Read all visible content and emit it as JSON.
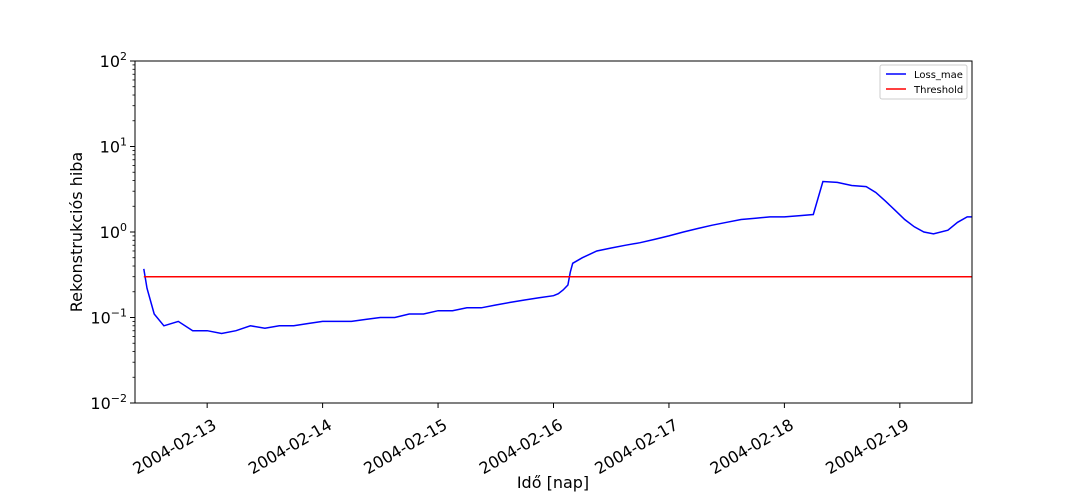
{
  "chart_data": {
    "type": "line",
    "title": "",
    "xlabel": "Idő [nap]",
    "ylabel": "Rekonstrukciós hiba",
    "yscale": "log",
    "ylim": [
      0.01,
      100
    ],
    "xlim": [
      "2004-02-12T09:00",
      "2004-02-19T15:00"
    ],
    "x_ticks": [
      "2004-02-13",
      "2004-02-14",
      "2004-02-15",
      "2004-02-16",
      "2004-02-17",
      "2004-02-18",
      "2004-02-19"
    ],
    "y_ticks": [
      {
        "base": "10",
        "exp": "−2",
        "value": 0.01
      },
      {
        "base": "10",
        "exp": "−1",
        "value": 0.1
      },
      {
        "base": "10",
        "exp": "0",
        "value": 1
      },
      {
        "base": "10",
        "exp": "1",
        "value": 10
      },
      {
        "base": "10",
        "exp": "2",
        "value": 100
      }
    ],
    "grid": false,
    "legend_position": "top-right",
    "series": [
      {
        "name": "Loss_mae",
        "color": "#0000ff",
        "points": [
          [
            "2004-02-12T10:50",
            0.37
          ],
          [
            "2004-02-12T11:30",
            0.22
          ],
          [
            "2004-02-12T13:00",
            0.11
          ],
          [
            "2004-02-12T15:00",
            0.08
          ],
          [
            "2004-02-12T18:00",
            0.09
          ],
          [
            "2004-02-12T21:00",
            0.07
          ],
          [
            "2004-02-13T00:00",
            0.07
          ],
          [
            "2004-02-13T03:00",
            0.065
          ],
          [
            "2004-02-13T06:00",
            0.07
          ],
          [
            "2004-02-13T09:00",
            0.08
          ],
          [
            "2004-02-13T12:00",
            0.075
          ],
          [
            "2004-02-13T15:00",
            0.08
          ],
          [
            "2004-02-13T18:00",
            0.08
          ],
          [
            "2004-02-13T21:00",
            0.085
          ],
          [
            "2004-02-14T00:00",
            0.09
          ],
          [
            "2004-02-14T03:00",
            0.09
          ],
          [
            "2004-02-14T06:00",
            0.09
          ],
          [
            "2004-02-14T09:00",
            0.095
          ],
          [
            "2004-02-14T12:00",
            0.1
          ],
          [
            "2004-02-14T15:00",
            0.1
          ],
          [
            "2004-02-14T18:00",
            0.11
          ],
          [
            "2004-02-14T21:00",
            0.11
          ],
          [
            "2004-02-15T00:00",
            0.12
          ],
          [
            "2004-02-15T03:00",
            0.12
          ],
          [
            "2004-02-15T06:00",
            0.13
          ],
          [
            "2004-02-15T09:00",
            0.13
          ],
          [
            "2004-02-15T12:00",
            0.14
          ],
          [
            "2004-02-15T15:00",
            0.15
          ],
          [
            "2004-02-15T18:00",
            0.16
          ],
          [
            "2004-02-15T21:00",
            0.17
          ],
          [
            "2004-02-16T00:00",
            0.18
          ],
          [
            "2004-02-16T01:00",
            0.19
          ],
          [
            "2004-02-16T02:00",
            0.21
          ],
          [
            "2004-02-16T03:00",
            0.24
          ],
          [
            "2004-02-16T03:30",
            0.34
          ],
          [
            "2004-02-16T04:00",
            0.43
          ],
          [
            "2004-02-16T06:00",
            0.5
          ],
          [
            "2004-02-16T09:00",
            0.6
          ],
          [
            "2004-02-16T12:00",
            0.65
          ],
          [
            "2004-02-16T15:00",
            0.7
          ],
          [
            "2004-02-16T18:00",
            0.75
          ],
          [
            "2004-02-16T21:00",
            0.82
          ],
          [
            "2004-02-17T00:00",
            0.9
          ],
          [
            "2004-02-17T03:00",
            1.0
          ],
          [
            "2004-02-17T06:00",
            1.1
          ],
          [
            "2004-02-17T09:00",
            1.2
          ],
          [
            "2004-02-17T12:00",
            1.3
          ],
          [
            "2004-02-17T15:00",
            1.4
          ],
          [
            "2004-02-17T18:00",
            1.45
          ],
          [
            "2004-02-17T21:00",
            1.5
          ],
          [
            "2004-02-18T00:00",
            1.5
          ],
          [
            "2004-02-18T03:00",
            1.55
          ],
          [
            "2004-02-18T06:00",
            1.6
          ],
          [
            "2004-02-18T07:00",
            2.5
          ],
          [
            "2004-02-18T08:00",
            3.9
          ],
          [
            "2004-02-18T11:00",
            3.8
          ],
          [
            "2004-02-18T14:00",
            3.5
          ],
          [
            "2004-02-18T17:00",
            3.4
          ],
          [
            "2004-02-18T19:00",
            2.9
          ],
          [
            "2004-02-18T21:00",
            2.3
          ],
          [
            "2004-02-18T23:00",
            1.8
          ],
          [
            "2004-02-19T01:00",
            1.4
          ],
          [
            "2004-02-19T03:00",
            1.15
          ],
          [
            "2004-02-19T05:00",
            1.0
          ],
          [
            "2004-02-19T07:00",
            0.95
          ],
          [
            "2004-02-19T10:00",
            1.05
          ],
          [
            "2004-02-19T12:00",
            1.3
          ],
          [
            "2004-02-19T14:00",
            1.5
          ],
          [
            "2004-02-19T15:00",
            1.5
          ]
        ]
      },
      {
        "name": "Threshold",
        "color": "#ff0000",
        "points": [
          [
            "2004-02-12T10:50",
            0.3
          ],
          [
            "2004-02-19T15:00",
            0.3
          ]
        ]
      }
    ]
  }
}
